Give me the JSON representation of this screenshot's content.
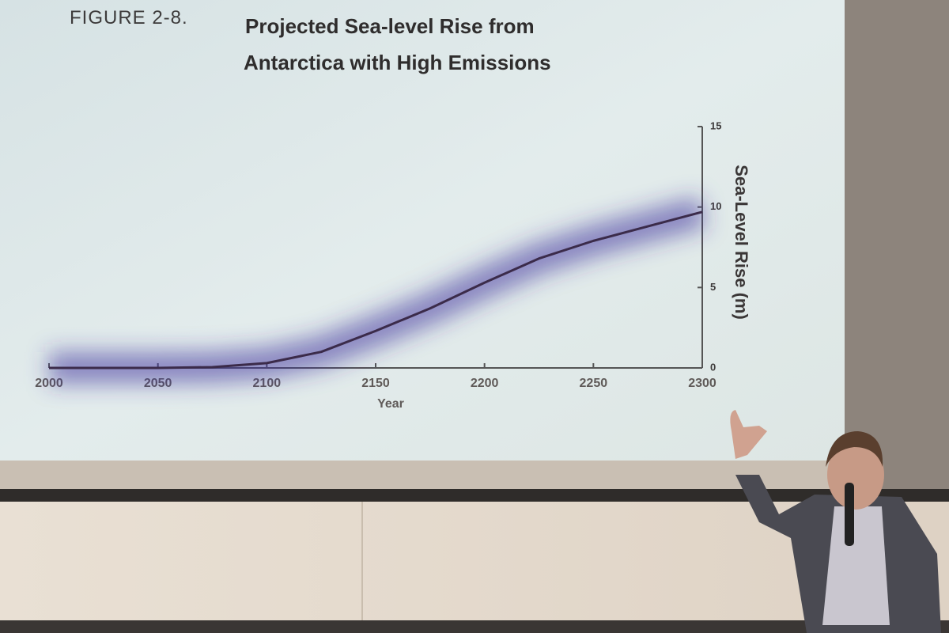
{
  "chart_data": {
    "type": "line",
    "figure_label": "FIGURE 2-8.",
    "title": [
      "Projected Sea-level Rise from",
      "Antarctica with High Emissions"
    ],
    "x_label": "Year",
    "y_label": "Sea-Level Rise (m)",
    "x": [
      2000,
      2025,
      2050,
      2075,
      2100,
      2125,
      2150,
      2175,
      2200,
      2225,
      2250,
      2275,
      2300
    ],
    "series": [
      {
        "color": "#3b2b4a",
        "band_color": "#3d2f9a",
        "values": [
          0,
          0,
          0,
          0.05,
          0.3,
          1.0,
          2.3,
          3.7,
          5.3,
          6.8,
          7.9,
          8.8,
          9.7
        ]
      }
    ],
    "xlim": [
      2000,
      2300
    ],
    "xticks": [
      2000,
      2050,
      2100,
      2150,
      2200,
      2250,
      2300
    ],
    "ylim": [
      0,
      15
    ],
    "yticks": [
      0,
      5,
      10,
      15
    ],
    "y_axis_side": "right"
  }
}
